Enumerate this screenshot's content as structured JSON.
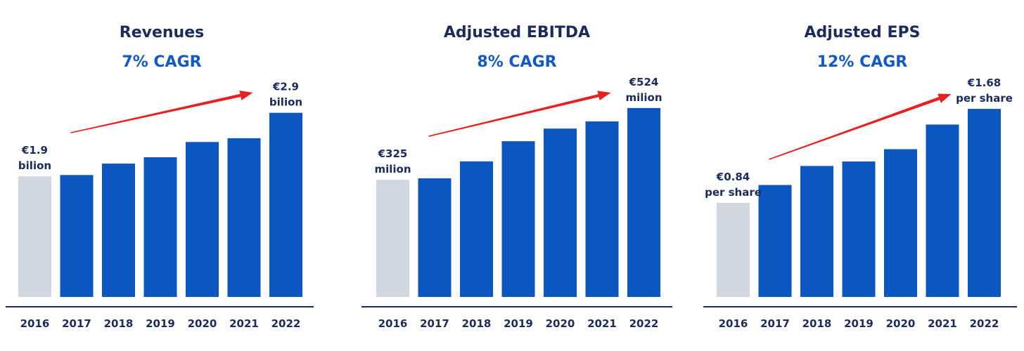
{
  "colors": {
    "bar": "#0c56bf",
    "base_bar": "#d3d7df",
    "arrow": "#e52222",
    "axis": "#1a2b5c",
    "title": "#1a2b5c",
    "subtitle": "#1259c3"
  },
  "panels": [
    {
      "title": "Revenues",
      "subtitle": "7% CAGR",
      "start_label": [
        "€1.9",
        "bilion"
      ],
      "end_label": [
        "€2.9",
        "bilion"
      ]
    },
    {
      "title": "Adjusted EBITDA",
      "subtitle": "8% CAGR",
      "start_label": [
        "€325",
        "milion"
      ],
      "end_label": [
        "€524",
        "milion"
      ]
    },
    {
      "title": "Adjusted EPS",
      "subtitle": "12% CAGR",
      "start_label": [
        "€0.84",
        "per share"
      ],
      "end_label": [
        "€1.68",
        "per share"
      ]
    }
  ],
  "chart_data": [
    {
      "type": "bar",
      "title": "Revenues",
      "subtitle": "7% CAGR",
      "categories": [
        "2016",
        "2017",
        "2018",
        "2019",
        "2020",
        "2021",
        "2022"
      ],
      "values": [
        1.9,
        1.92,
        2.1,
        2.2,
        2.44,
        2.5,
        2.9
      ],
      "ylim": [
        0,
        3.35
      ],
      "grid": false,
      "highlight_first": true
    },
    {
      "type": "bar",
      "title": "Adjusted EBITDA",
      "subtitle": "8% CAGR",
      "categories": [
        "2016",
        "2017",
        "2018",
        "2019",
        "2020",
        "2021",
        "2022"
      ],
      "values": [
        325,
        329,
        376,
        432,
        467,
        487,
        524
      ],
      "ylim": [
        0,
        590
      ],
      "grid": false,
      "highlight_first": true
    },
    {
      "type": "bar",
      "title": "Adjusted EPS",
      "subtitle": "12% CAGR",
      "categories": [
        "2016",
        "2017",
        "2018",
        "2019",
        "2020",
        "2021",
        "2022"
      ],
      "values": [
        0.84,
        1.0,
        1.17,
        1.21,
        1.32,
        1.54,
        1.68
      ],
      "ylim": [
        0,
        1.9
      ],
      "grid": false,
      "highlight_first": true
    }
  ]
}
